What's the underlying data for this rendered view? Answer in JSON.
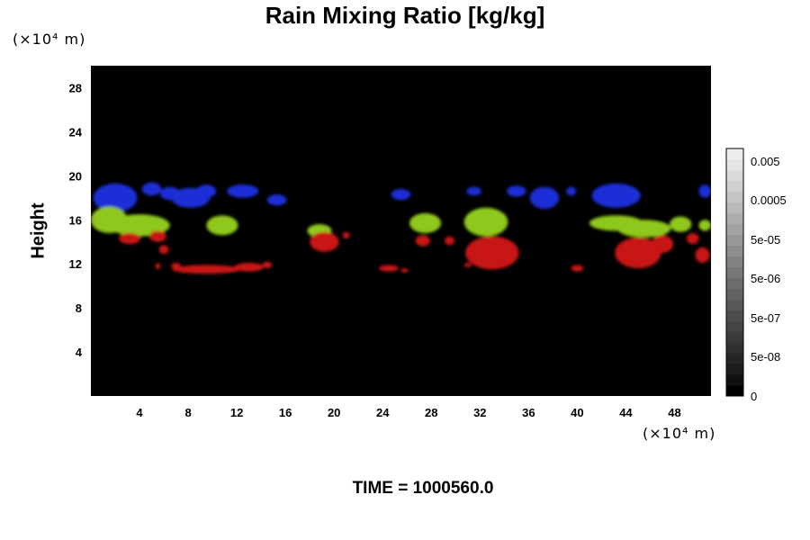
{
  "chart_data": {
    "type": "heatmap",
    "title": "Rain Mixing Ratio [kg/kg]",
    "ylabel": "Height",
    "y_unit": "(×10⁴ m)",
    "x_unit": "(×10⁴ m)",
    "xlim": [
      0,
      51
    ],
    "ylim": [
      0,
      30
    ],
    "x_ticks": [
      4,
      8,
      12,
      16,
      20,
      24,
      28,
      32,
      36,
      40,
      44,
      48
    ],
    "y_ticks": [
      4,
      8,
      12,
      16,
      20,
      24,
      28
    ],
    "background_color": "#000000",
    "colorbar": {
      "labels": [
        "0.005",
        "0.0005",
        "5e-05",
        "5e-06",
        "5e-07",
        "5e-08",
        "0"
      ],
      "colors": [
        "#000000",
        "#101010",
        "#1c1c1c",
        "#262626",
        "#303030",
        "#3a3a3a",
        "#444444",
        "#4e4e4e",
        "#585858",
        "#626262",
        "#6c6c6c",
        "#777777",
        "#828282",
        "#8d8d8d",
        "#989898",
        "#a3a3a3",
        "#aeaeae",
        "#b9b9b9",
        "#c4c4c4",
        "#cfcfcf",
        "#dadada",
        "#e4e4e4",
        "#eeeeee"
      ]
    },
    "layers": [
      {
        "color": "#1a2fd6",
        "blobs": [
          [
            2.0,
            18.0,
            1.8,
            1.3
          ],
          [
            5.0,
            18.8,
            0.8,
            0.6
          ],
          [
            6.5,
            18.4,
            0.8,
            0.6
          ],
          [
            8.2,
            18.0,
            1.6,
            0.9
          ],
          [
            9.5,
            18.6,
            0.8,
            0.6
          ],
          [
            12.5,
            18.6,
            1.3,
            0.6
          ],
          [
            15.3,
            17.8,
            0.8,
            0.5
          ],
          [
            25.5,
            18.3,
            0.8,
            0.5
          ],
          [
            31.5,
            18.6,
            0.6,
            0.4
          ],
          [
            35.0,
            18.6,
            0.8,
            0.5
          ],
          [
            37.3,
            18.0,
            1.2,
            1.0
          ],
          [
            39.5,
            18.6,
            0.4,
            0.4
          ],
          [
            43.2,
            18.2,
            2.0,
            1.1
          ],
          [
            50.5,
            18.6,
            0.5,
            0.6
          ]
        ]
      },
      {
        "color": "#8fc81a",
        "blobs": [
          [
            1.5,
            16.0,
            1.5,
            1.2
          ],
          [
            4.0,
            15.5,
            2.5,
            1.0
          ],
          [
            10.8,
            15.5,
            1.3,
            0.9
          ],
          [
            18.8,
            15.0,
            1.0,
            0.6
          ],
          [
            27.5,
            15.7,
            1.3,
            0.9
          ],
          [
            32.5,
            15.8,
            1.8,
            1.3
          ],
          [
            43.2,
            15.7,
            2.2,
            0.7
          ],
          [
            45.5,
            15.2,
            2.2,
            0.8
          ],
          [
            48.5,
            15.6,
            0.9,
            0.7
          ],
          [
            50.5,
            15.5,
            0.5,
            0.5
          ]
        ]
      },
      {
        "color": "#c81414",
        "blobs": [
          [
            3.2,
            14.3,
            0.9,
            0.5
          ],
          [
            5.5,
            14.5,
            0.7,
            0.5
          ],
          [
            6.0,
            13.3,
            0.4,
            0.4
          ],
          [
            19.2,
            14.0,
            1.2,
            0.9
          ],
          [
            21.0,
            14.6,
            0.3,
            0.3
          ],
          [
            27.3,
            14.1,
            0.6,
            0.5
          ],
          [
            29.5,
            14.1,
            0.4,
            0.4
          ],
          [
            33.0,
            13.0,
            2.2,
            1.5
          ],
          [
            45.0,
            13.0,
            1.9,
            1.4
          ],
          [
            47.0,
            13.8,
            0.9,
            0.8
          ],
          [
            49.5,
            14.3,
            0.5,
            0.5
          ],
          [
            50.3,
            12.8,
            0.6,
            0.7
          ],
          [
            5.5,
            11.8,
            0.2,
            0.3
          ],
          [
            7.0,
            11.8,
            0.4,
            0.3
          ],
          [
            9.5,
            11.5,
            2.8,
            0.4
          ],
          [
            13.0,
            11.7,
            1.2,
            0.4
          ],
          [
            14.5,
            11.9,
            0.4,
            0.3
          ],
          [
            24.5,
            11.6,
            0.8,
            0.3
          ],
          [
            25.8,
            11.4,
            0.3,
            0.2
          ],
          [
            31.0,
            11.9,
            0.3,
            0.2
          ],
          [
            40.0,
            11.6,
            0.5,
            0.3
          ]
        ]
      }
    ],
    "time_label": "TIME = 1000560.0"
  }
}
